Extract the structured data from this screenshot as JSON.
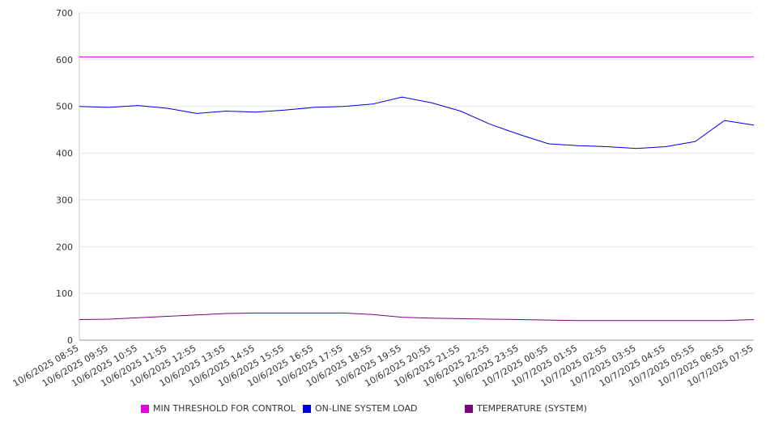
{
  "chart_data": {
    "type": "line",
    "title": "",
    "xlabel": "",
    "ylabel": "",
    "ylim": [
      0,
      700
    ],
    "yticks": [
      0,
      100,
      200,
      300,
      400,
      500,
      600,
      700
    ],
    "grid": true,
    "legend_position": "bottom",
    "categories": [
      "10/6/2025 08:55",
      "10/6/2025 09:55",
      "10/6/2025 10:55",
      "10/6/2025 11:55",
      "10/6/2025 12:55",
      "10/6/2025 13:55",
      "10/6/2025 14:55",
      "10/6/2025 15:55",
      "10/6/2025 16:55",
      "10/6/2025 17:55",
      "10/6/2025 18:55",
      "10/6/2025 19:55",
      "10/6/2025 20:55",
      "10/6/2025 21:55",
      "10/6/2025 22:55",
      "10/6/2025 23:55",
      "10/7/2025 00:55",
      "10/7/2025 01:55",
      "10/7/2025 02:55",
      "10/7/2025 03:55",
      "10/7/2025 04:55",
      "10/7/2025 05:55",
      "10/7/2025 06:55",
      "10/7/2025 07:55"
    ],
    "series": [
      {
        "name": "MIN THRESHOLD FOR CONTROL",
        "color": "#e000e0",
        "values": [
          606,
          606,
          606,
          606,
          606,
          606,
          606,
          606,
          606,
          606,
          606,
          606,
          606,
          606,
          606,
          606,
          606,
          606,
          606,
          606,
          606,
          606,
          606,
          606
        ]
      },
      {
        "name": "ON-LINE SYSTEM LOAD",
        "color": "#0000dd",
        "values": [
          500,
          498,
          502,
          496,
          485,
          490,
          488,
          492,
          498,
          500,
          505,
          520,
          508,
          490,
          462,
          440,
          420,
          416,
          414,
          410,
          414,
          425,
          470,
          460
        ]
      },
      {
        "name": "TEMPERATURE (SYSTEM)",
        "color": "#800080",
        "values": [
          44,
          45,
          48,
          51,
          54,
          57,
          58,
          58,
          58,
          58,
          55,
          49,
          47,
          46,
          45,
          44,
          43,
          42,
          42,
          42,
          42,
          42,
          42,
          44
        ]
      }
    ]
  }
}
